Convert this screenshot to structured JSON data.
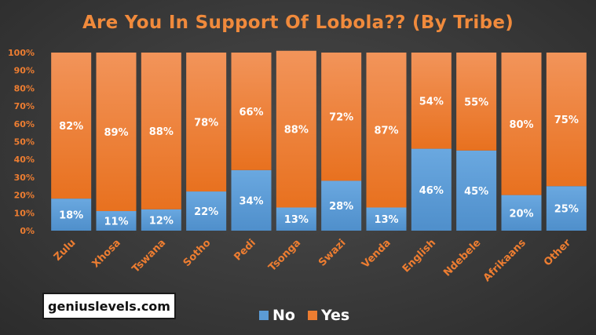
{
  "chart_data": {
    "type": "bar",
    "stacked": true,
    "title": "Are You In Support Of Lobola?? (By Tribe)",
    "categories": [
      "Zulu",
      "Xhosa",
      "Tswana",
      "Sotho",
      "Pedi",
      "Tsonga",
      "Swazi",
      "Venda",
      "English",
      "Ndebele",
      "Afrikaans",
      "Other"
    ],
    "series": [
      {
        "name": "No",
        "color": "#5b9bd5",
        "values": [
          18,
          11,
          12,
          22,
          34,
          13,
          28,
          13,
          46,
          45,
          20,
          25
        ]
      },
      {
        "name": "Yes",
        "color": "#ed7d31",
        "values": [
          82,
          89,
          88,
          78,
          66,
          88,
          72,
          87,
          54,
          55,
          80,
          75
        ]
      }
    ],
    "value_suffix": "%",
    "ylim": [
      0,
      100
    ],
    "yticks": [
      "0%",
      "10%",
      "20%",
      "30%",
      "40%",
      "50%",
      "60%",
      "70%",
      "80%",
      "90%",
      "100%"
    ],
    "legend_position": "bottom",
    "grid": false
  },
  "watermark": "geniuslevels.com",
  "colors": {
    "accent": "#f08a3c",
    "background": "#3b3b3b"
  }
}
